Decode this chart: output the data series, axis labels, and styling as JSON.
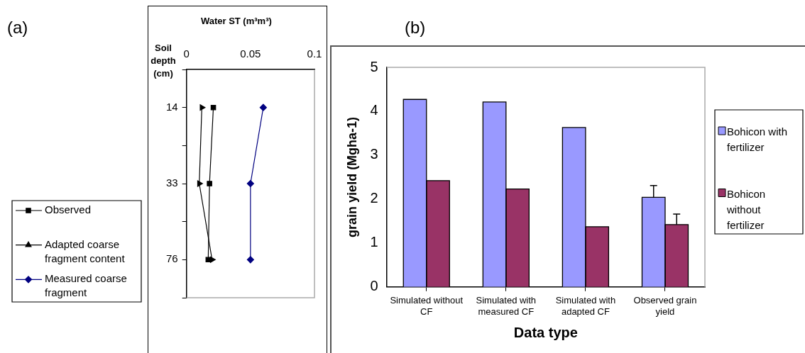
{
  "chart_data": [
    {
      "type": "line",
      "orientation": "horizontal",
      "title": "Water ST (m³m³)",
      "ylabel": "Soil depth (cm)",
      "annotations": [
        "(a)"
      ],
      "categories": [
        null,
        "14",
        null,
        "33",
        null,
        "76",
        null
      ],
      "series": [
        {
          "name": "Observed",
          "color": "#000000",
          "marker": "square",
          "values": [
            null,
            0.021,
            null,
            0.018,
            null,
            0.017,
            null
          ]
        },
        {
          "name": "Adapted coarse fragment content",
          "color": "#000000",
          "marker": "triangle",
          "values": [
            null,
            0.012,
            null,
            0.01,
            null,
            0.02,
            null
          ]
        },
        {
          "name": "Measured coarse fragment",
          "color": "#000080",
          "marker": "diamond",
          "values": [
            null,
            0.06,
            null,
            0.05,
            null,
            0.05,
            null
          ]
        }
      ],
      "xlim": [
        0,
        0.1
      ],
      "xticks": [
        0,
        0.05,
        0.1
      ],
      "grid": false,
      "legend": "left"
    },
    {
      "type": "bar",
      "xlabel": "Data type",
      "ylabel": "grain yield (Mgha-1)",
      "annotations": [
        "(b)"
      ],
      "categories": [
        "Simulated without CF",
        "Simulated with measured CF",
        "Simulated with adapted CF",
        "Observed grain yield"
      ],
      "series": [
        {
          "name": "Bohicon with fertilizer",
          "color": "#9999ff",
          "values": [
            4.27,
            4.21,
            3.63,
            2.04
          ],
          "errors": [
            null,
            null,
            null,
            [
              2.04,
              2.31
            ]
          ]
        },
        {
          "name": "Bohicon without fertilizer",
          "color": "#993366",
          "values": [
            2.42,
            2.23,
            1.37,
            1.42
          ],
          "errors": [
            null,
            null,
            null,
            [
              1.42,
              1.66
            ]
          ]
        }
      ],
      "ylim": [
        0,
        5
      ],
      "yticks": [
        0,
        1,
        2,
        3,
        4,
        5
      ],
      "grid": false,
      "legend": "right"
    }
  ]
}
